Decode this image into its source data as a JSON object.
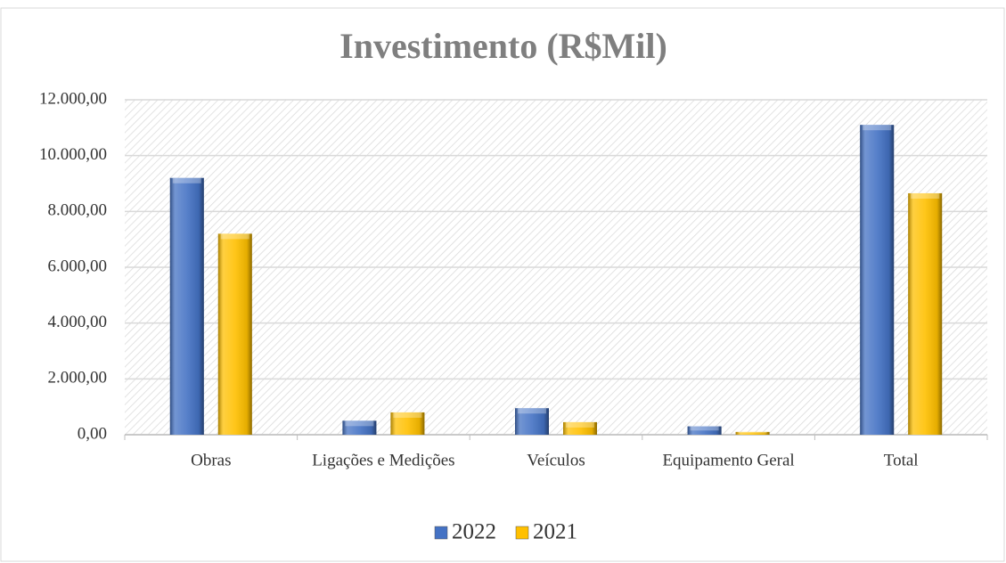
{
  "chart_data": {
    "type": "bar",
    "title": "Investimento (R$Mil)",
    "categories": [
      "Obras",
      "Ligações e Medições",
      "Veículos",
      "Equipamento Geral",
      "Total"
    ],
    "series": [
      {
        "name": "2022",
        "color": "#4472c4",
        "values": [
          9200,
          500,
          950,
          300,
          11100
        ]
      },
      {
        "name": "2021",
        "color": "#ffc000",
        "values": [
          7200,
          800,
          450,
          100,
          8650
        ]
      }
    ],
    "ylim": [
      0,
      12000
    ],
    "yticks": [
      {
        "value": 0,
        "label": "0,00"
      },
      {
        "value": 2000,
        "label": "2.000,00"
      },
      {
        "value": 4000,
        "label": "4.000,00"
      },
      {
        "value": 6000,
        "label": "6.000,00"
      },
      {
        "value": 8000,
        "label": "8.000,00"
      },
      {
        "value": 10000,
        "label": "10.000,00"
      },
      {
        "value": 12000,
        "label": "12.000,00"
      }
    ],
    "grid": true,
    "legend": "bottom"
  }
}
